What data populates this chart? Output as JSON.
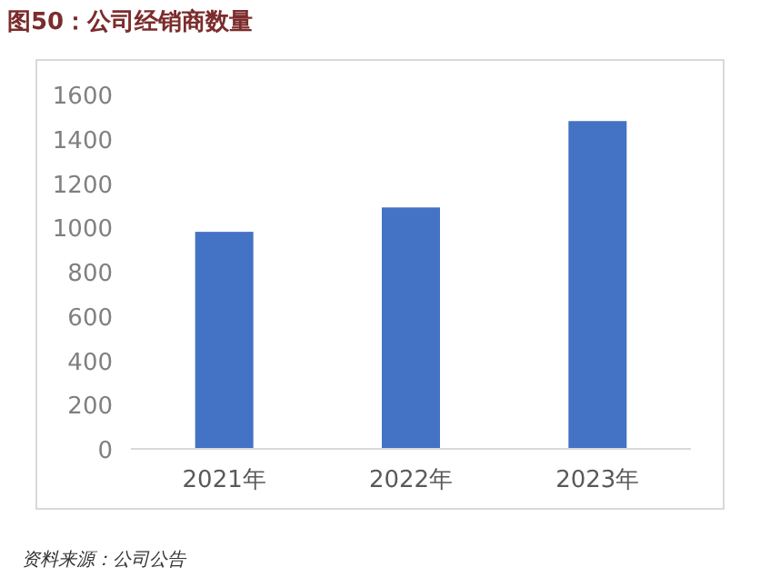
{
  "chart_data": {
    "type": "bar",
    "title": "图50：公司经销商数量",
    "categories": [
      "2021年",
      "2022年",
      "2023年"
    ],
    "values": [
      980,
      1090,
      1480
    ],
    "color": "#4472c4",
    "ylim": [
      0,
      1600
    ],
    "yticks": [
      0,
      200,
      400,
      600,
      800,
      1000,
      1200,
      1400,
      1600
    ],
    "grid": false,
    "annotations": [
      "资料来源：公司公告"
    ]
  }
}
